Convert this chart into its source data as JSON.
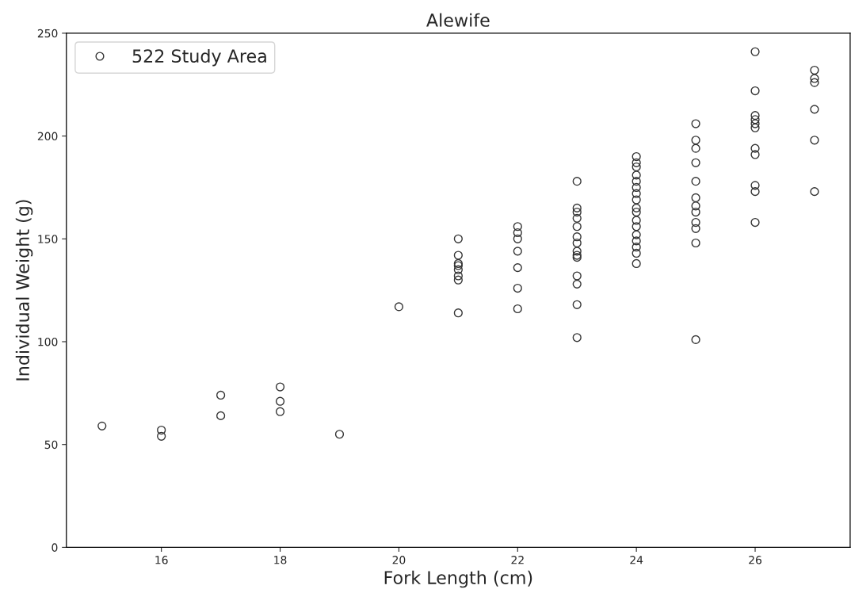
{
  "chart_data": {
    "type": "scatter",
    "title": "Alewife",
    "xlabel": "Fork Length (cm)",
    "ylabel": "Individual Weight (g)",
    "xlim": [
      14.4,
      27.6
    ],
    "xticks": [
      16,
      18,
      20,
      22,
      24,
      26
    ],
    "ylim": [
      0,
      250
    ],
    "yticks": [
      0,
      50,
      100,
      150,
      200,
      250
    ],
    "grid": false,
    "legend": "top left",
    "marker": "circle",
    "series": [
      {
        "name": "522 Study Area",
        "color": "#333333",
        "x": [
          15,
          16,
          16,
          17,
          17,
          18,
          18,
          18,
          19,
          20,
          21,
          21,
          21,
          21,
          21,
          21,
          21,
          21,
          22,
          22,
          22,
          22,
          22,
          22,
          22,
          23,
          23,
          23,
          23,
          23,
          23,
          23,
          23,
          23,
          23,
          23,
          23,
          23,
          23,
          24,
          24,
          24,
          24,
          24,
          24,
          24,
          24,
          24,
          24,
          24,
          24,
          24,
          24,
          24,
          24,
          24,
          25,
          25,
          25,
          25,
          25,
          25,
          25,
          25,
          25,
          25,
          25,
          25,
          26,
          26,
          26,
          26,
          26,
          26,
          26,
          26,
          26,
          26,
          26,
          27,
          27,
          27,
          27,
          27,
          27
        ],
        "values": [
          59,
          57,
          54,
          74,
          64,
          78,
          71,
          66,
          55,
          117,
          150,
          142,
          138,
          137,
          135,
          132,
          130,
          114,
          156,
          153,
          150,
          144,
          136,
          126,
          116,
          178,
          165,
          163,
          160,
          156,
          151,
          148,
          144,
          142,
          141,
          132,
          128,
          118,
          102,
          190,
          187,
          185,
          181,
          178,
          175,
          172,
          169,
          165,
          163,
          159,
          156,
          152,
          149,
          146,
          143,
          138,
          206,
          198,
          194,
          187,
          178,
          170,
          166,
          163,
          158,
          155,
          148,
          101,
          241,
          222,
          210,
          208,
          206,
          204,
          194,
          191,
          176,
          173,
          158,
          232,
          228,
          226,
          213,
          198,
          173
        ]
      }
    ]
  }
}
